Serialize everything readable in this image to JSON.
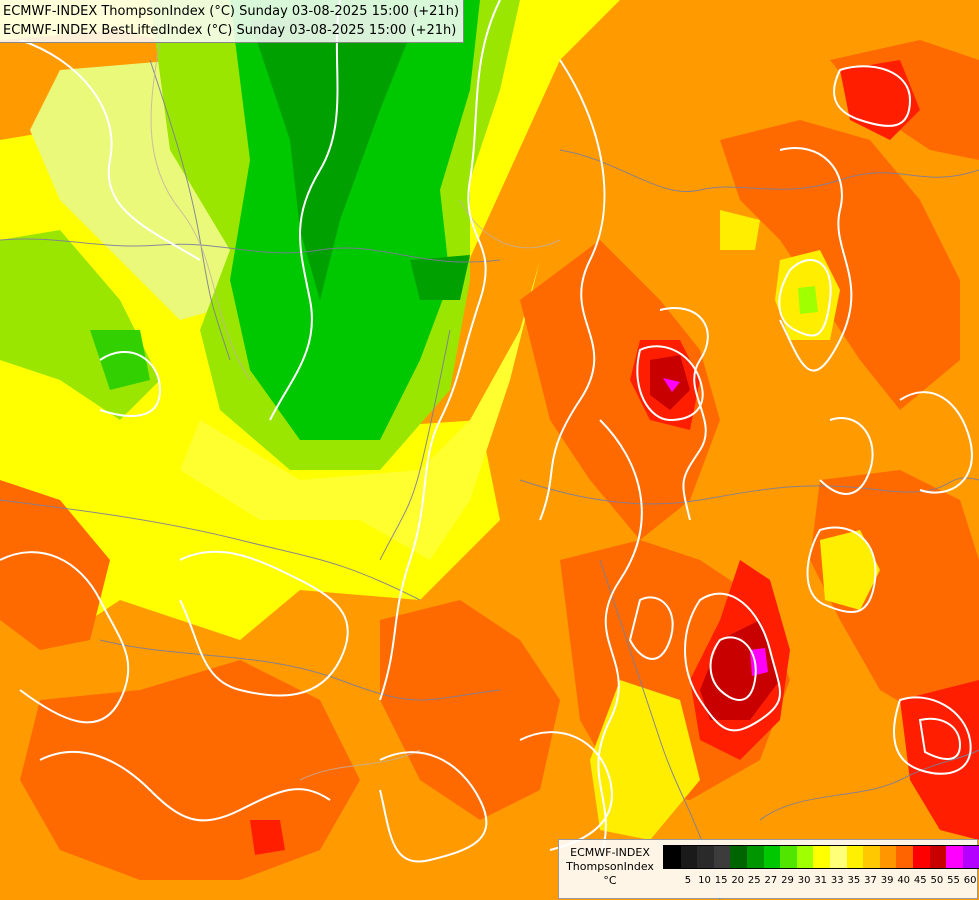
{
  "titles": [
    "ECMWF-INDEX ThompsonIndex (°C) Sunday 03-08-2025 15:00 (+21h)",
    "ECMWF-INDEX BestLiftedIndex (°C) Sunday 03-08-2025 15:00 (+21h)"
  ],
  "legend": {
    "model": "ECMWF-INDEX",
    "parameter": "ThompsonIndex",
    "unit": "°C",
    "colors": [
      "#000000",
      "#1a1a1a",
      "#2a2a2a",
      "#3c3c3c",
      "#006400",
      "#009600",
      "#00c800",
      "#50e600",
      "#a0ff00",
      "#ffff00",
      "#ffff78",
      "#fff000",
      "#ffc800",
      "#ff9600",
      "#ff6400",
      "#ff0000",
      "#c80000",
      "#ff00ff",
      "#b400ff",
      "#6400ff",
      "#0000ff"
    ],
    "ticks": [
      "5",
      "10",
      "15",
      "20",
      "25",
      "27",
      "29",
      "30",
      "31",
      "33",
      "35",
      "37",
      "39",
      "40",
      "45",
      "50",
      "55",
      "60"
    ]
  }
}
